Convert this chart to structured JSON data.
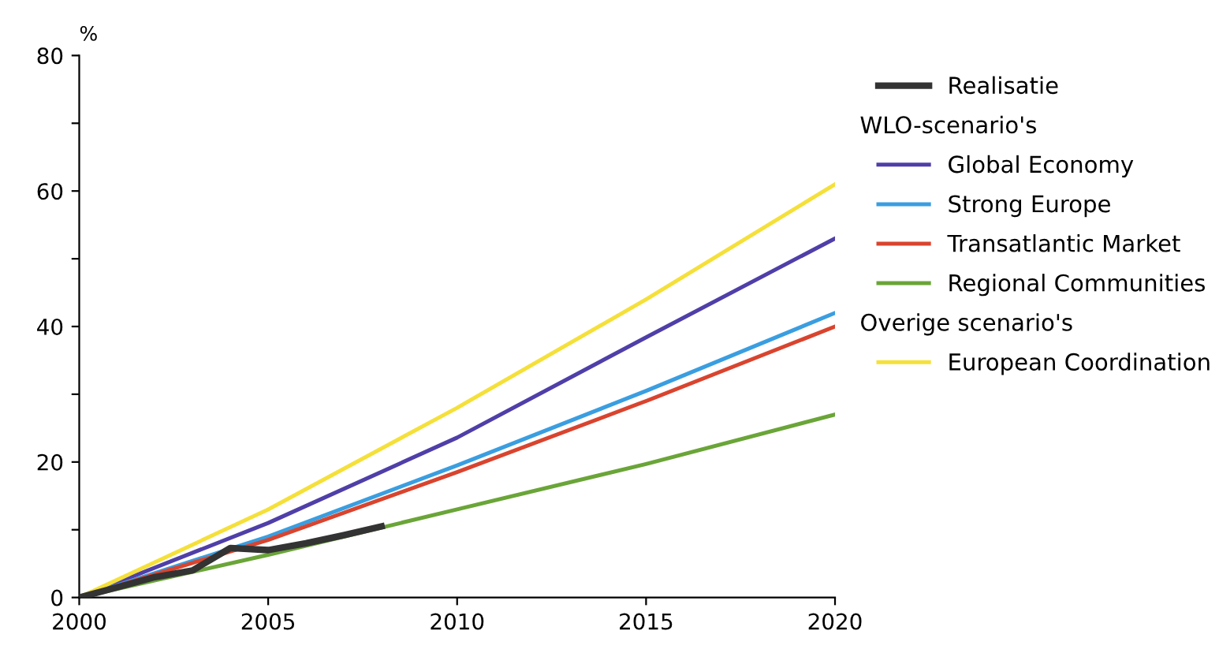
{
  "chart_data": {
    "type": "line",
    "ylabel": "%",
    "x": [
      2000,
      2005,
      2010,
      2015,
      2020
    ],
    "series": [
      {
        "name": "Realisatie",
        "color": "#333333",
        "x": [
          2000,
          2001,
          2002,
          2003,
          2004,
          2005,
          2006,
          2007,
          2008
        ],
        "values": [
          0,
          1.5,
          3,
          4,
          7.3,
          7,
          8,
          9.2,
          10.5
        ]
      },
      {
        "name": "Global Economy",
        "color": "#4f3fa8",
        "values": [
          0,
          11,
          23.6,
          38.4,
          53
        ]
      },
      {
        "name": "Strong Europe",
        "color": "#3a9ee0",
        "values": [
          0,
          9,
          19.5,
          30.5,
          42
        ]
      },
      {
        "name": "Transatlantic Market",
        "color": "#d9442e",
        "values": [
          0,
          8.5,
          18.5,
          29,
          40
        ]
      },
      {
        "name": "Regional Communities",
        "color": "#6aa538",
        "values": [
          0,
          6.3,
          13,
          19.7,
          27
        ]
      },
      {
        "name": "European Coordination",
        "color": "#f5e03a",
        "values": [
          0,
          13,
          28,
          44,
          61
        ]
      }
    ],
    "annotations": [
      "WLO-scenario's",
      "Overige scenario's"
    ],
    "xlim": [
      2000,
      2020
    ],
    "xticks": [
      2000,
      2005,
      2010,
      2015,
      2020
    ],
    "ylim": [
      0,
      80
    ],
    "yticks": [
      0,
      {
        "value": 10,
        "label": null
      },
      20,
      {
        "value": 30,
        "label": null
      },
      40,
      {
        "value": 50,
        "label": null
      },
      60,
      {
        "value": 70,
        "label": null
      },
      80
    ],
    "grid": false,
    "legend": "right",
    "marker": "none",
    "line_style": "solid"
  }
}
